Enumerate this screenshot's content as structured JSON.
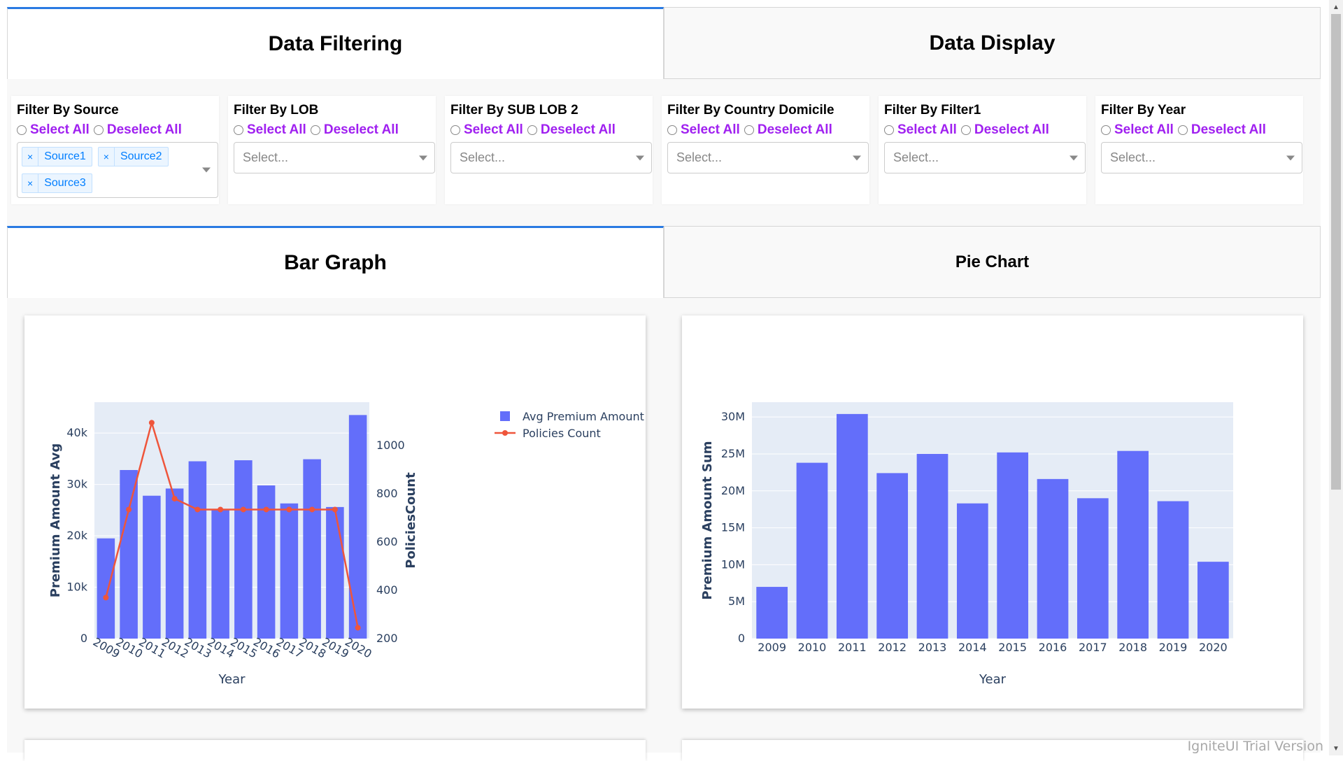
{
  "tabs_top": {
    "active": "Data Filtering",
    "inactive": "Data Display"
  },
  "filters": [
    {
      "title": "Filter By Source",
      "select_all": "Select All",
      "deselect_all": "Deselect All",
      "chips": [
        "Source1",
        "Source2",
        "Source3"
      ],
      "placeholder": ""
    },
    {
      "title": "Filter By LOB",
      "select_all": "Select All",
      "deselect_all": "Deselect All",
      "chips": [],
      "placeholder": "Select..."
    },
    {
      "title": "Filter By SUB LOB 2",
      "select_all": "Select All",
      "deselect_all": "Deselect All",
      "chips": [],
      "placeholder": "Select..."
    },
    {
      "title": "Filter By Country Domicile",
      "select_all": "Select All",
      "deselect_all": "Deselect All",
      "chips": [],
      "placeholder": "Select..."
    },
    {
      "title": "Filter By Filter1",
      "select_all": "Select All",
      "deselect_all": "Deselect All",
      "chips": [],
      "placeholder": "Select..."
    },
    {
      "title": "Filter By Year",
      "select_all": "Select All",
      "deselect_all": "Deselect All",
      "chips": [],
      "placeholder": "Select..."
    }
  ],
  "chip_remove_symbol": "×",
  "tabs_chart": {
    "active": "Bar Graph",
    "inactive": "Pie Chart"
  },
  "chart_data": [
    {
      "type": "bar",
      "categories": [
        "2009",
        "2010",
        "2011",
        "2012",
        "2013",
        "2014",
        "2015",
        "2016",
        "2017",
        "2018",
        "2019",
        "2020"
      ],
      "series": [
        {
          "name": "Avg Premium Amount",
          "type": "bar",
          "axis": "left",
          "color": "#636efa",
          "values": [
            19500,
            32800,
            27800,
            29200,
            34500,
            25100,
            34700,
            29800,
            26300,
            34900,
            25600,
            43500
          ]
        },
        {
          "name": "Policies Count",
          "type": "line",
          "axis": "right",
          "color": "#ef553b",
          "values": [
            370,
            735,
            1095,
            780,
            735,
            735,
            735,
            735,
            735,
            735,
            735,
            245
          ]
        }
      ],
      "xlabel": "Year",
      "ylabel": "Premium Amount Avg",
      "y2label": "PoliciesCount",
      "ylim": [
        0,
        46000
      ],
      "y2lim": [
        200,
        1180
      ],
      "yticks": [
        0,
        10000,
        20000,
        30000,
        40000
      ],
      "ytick_labels": [
        "0",
        "10k",
        "20k",
        "30k",
        "40k"
      ],
      "y2ticks": [
        200,
        400,
        600,
        800,
        1000
      ],
      "y2tick_labels": [
        "200",
        "400",
        "600",
        "800",
        "1000"
      ],
      "legend_position": "top-right",
      "grid": true
    },
    {
      "type": "bar",
      "categories": [
        "2009",
        "2010",
        "2011",
        "2012",
        "2013",
        "2014",
        "2015",
        "2016",
        "2017",
        "2018",
        "2019",
        "2020"
      ],
      "series": [
        {
          "name": "",
          "color": "#636efa",
          "values": [
            7000000,
            23800000,
            30400000,
            22400000,
            25000000,
            18300000,
            25200000,
            21600000,
            19000000,
            25400000,
            18600000,
            10400000
          ]
        }
      ],
      "xlabel": "Year",
      "ylabel": "Premium Amount Sum",
      "ylim": [
        0,
        32000000
      ],
      "yticks": [
        0,
        5000000,
        10000000,
        15000000,
        20000000,
        25000000,
        30000000
      ],
      "ytick_labels": [
        "0",
        "5M",
        "10M",
        "15M",
        "20M",
        "25M",
        "30M"
      ],
      "grid": true
    }
  ],
  "watermark": "IgniteUI Trial Version",
  "colors": {
    "accent_tab": "#2a7ae2",
    "link_purple": "#a020f0",
    "plot_bg": "#e5ecf6",
    "bar": "#636efa",
    "line": "#ef553b"
  },
  "icons": {
    "scroll_up": "▲",
    "scroll_down": "▼"
  }
}
